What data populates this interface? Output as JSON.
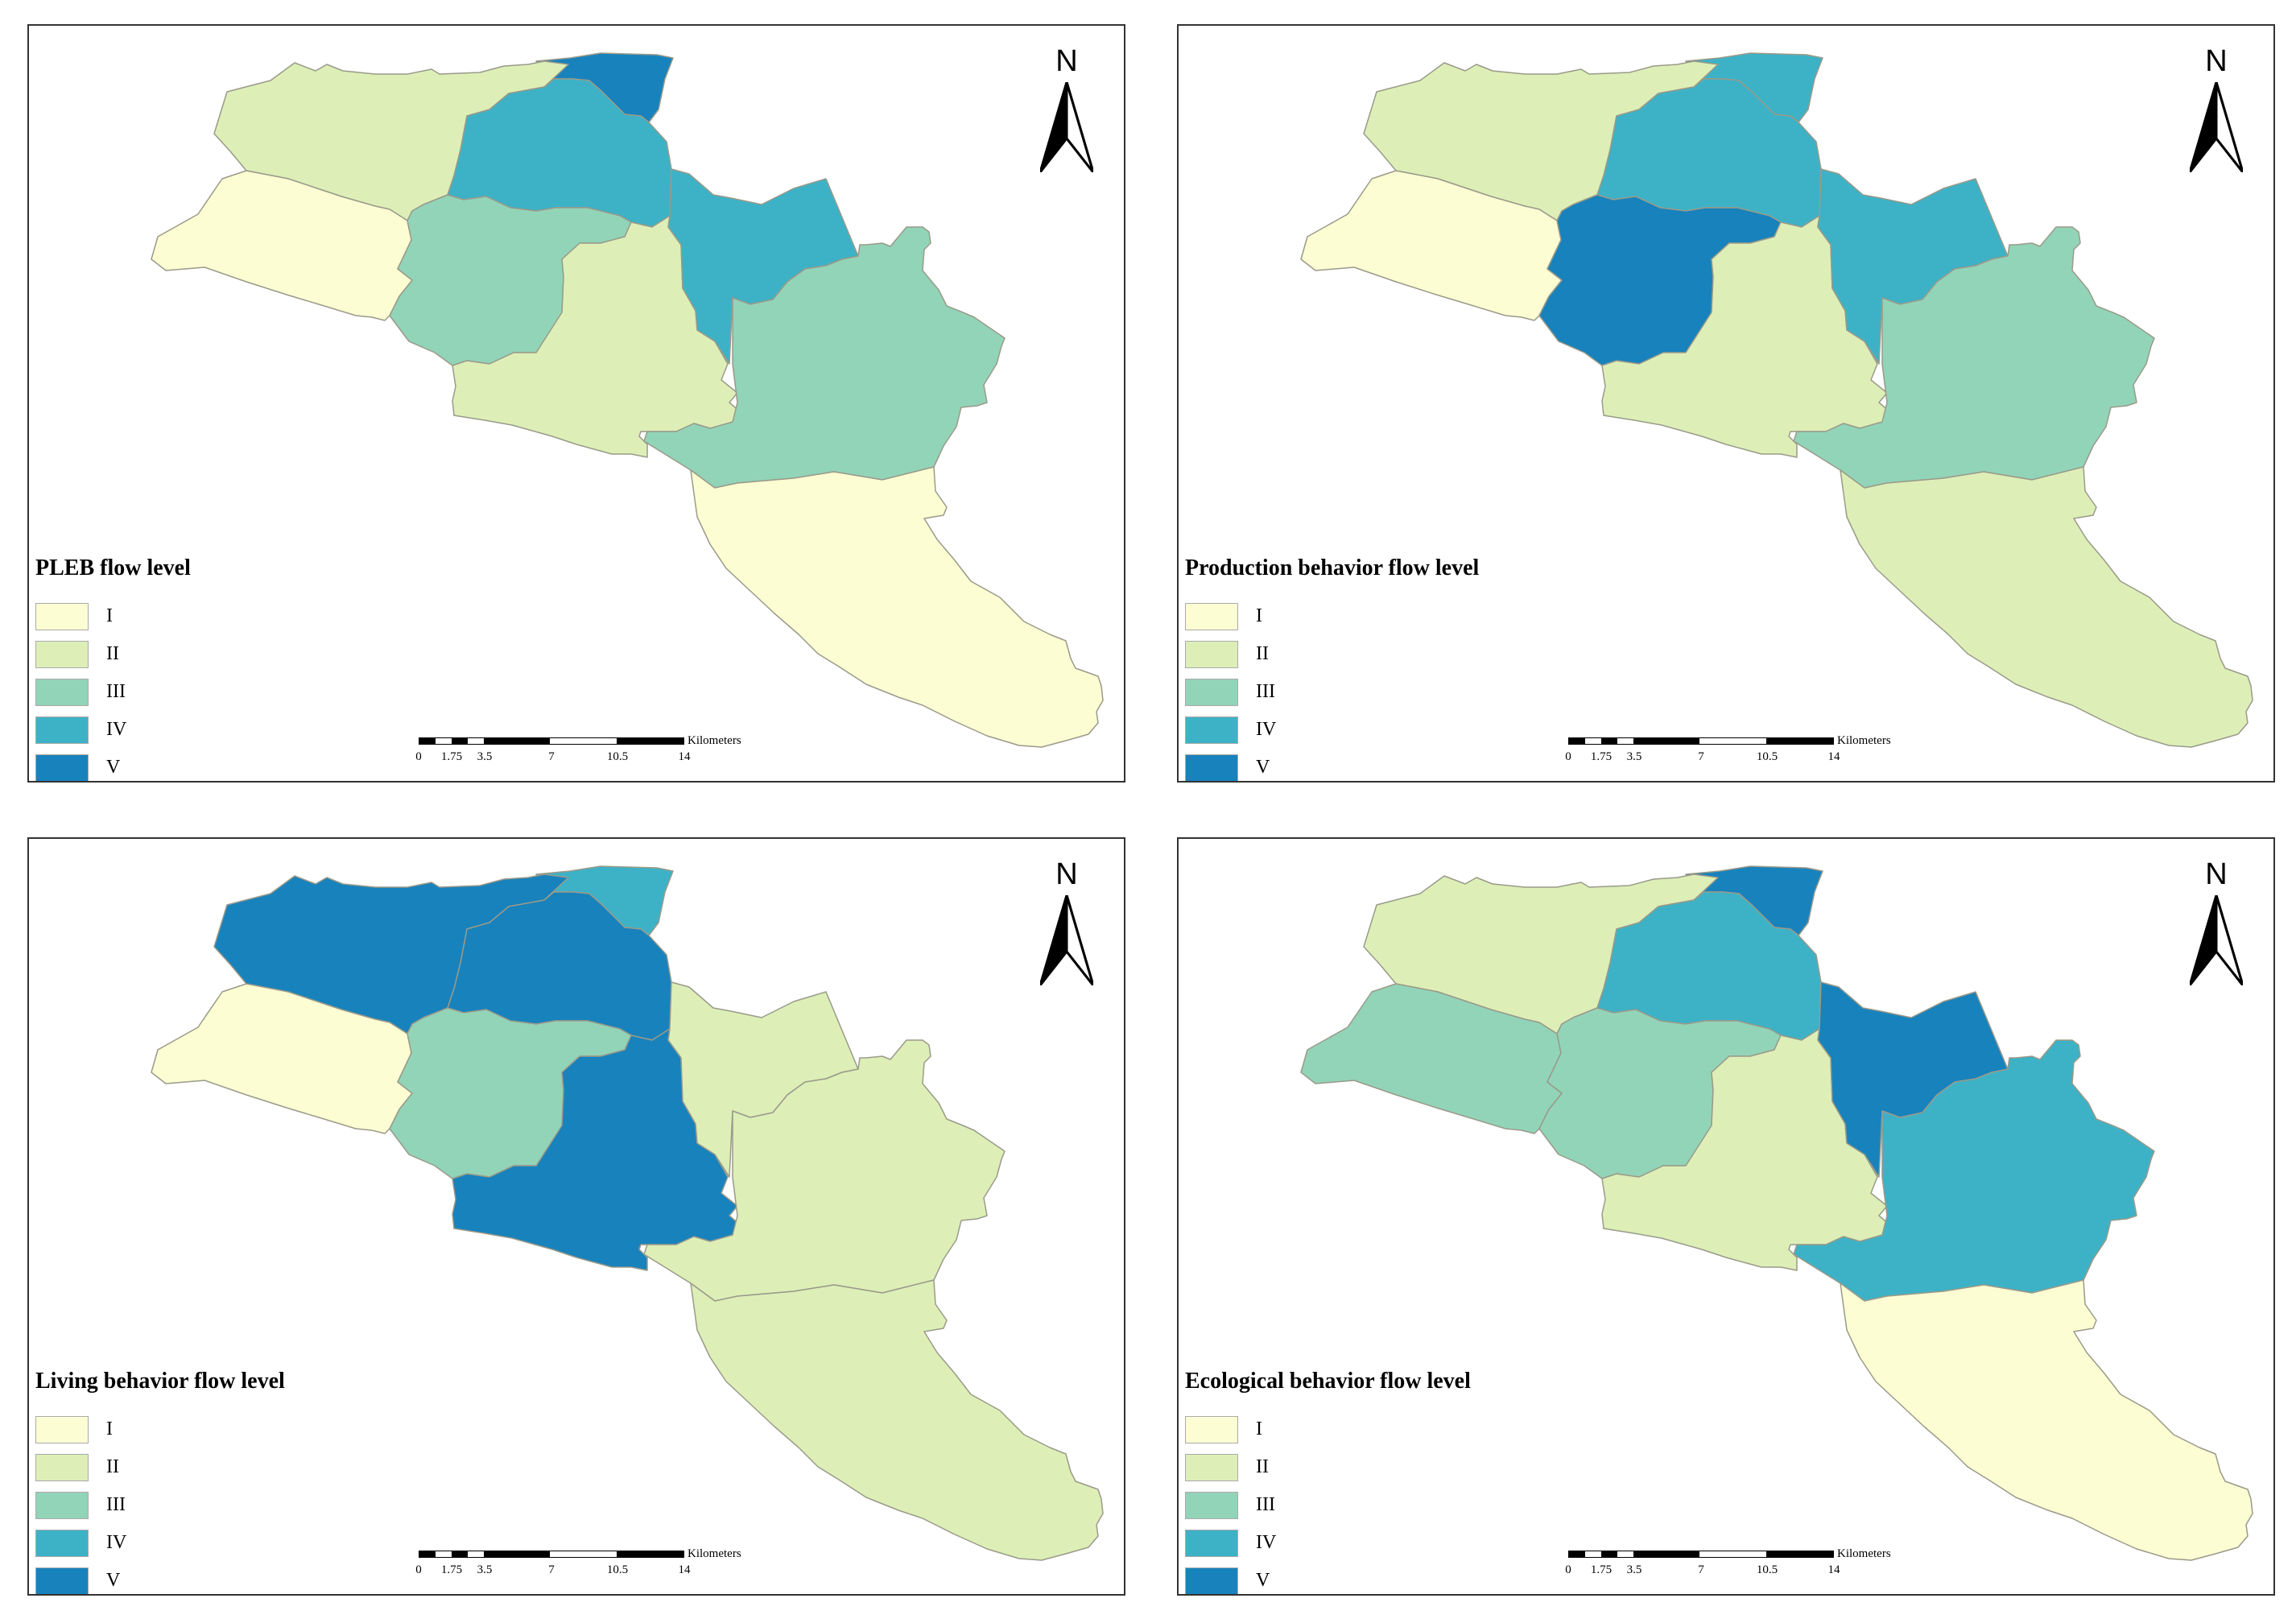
{
  "colors": {
    "I": "#fdfdd3",
    "II": "#ddefb7",
    "III": "#92d4b8",
    "IV": "#3db2c6",
    "V": "#1882bc"
  },
  "legend_levels": [
    "I",
    "II",
    "III",
    "IV",
    "V"
  ],
  "north_label": "N",
  "scale": {
    "ticks": [
      "0",
      "1.75",
      "3.5",
      "7",
      "10.5",
      "14"
    ],
    "unit": "Kilometers"
  },
  "maps": [
    {
      "title": "PLEB flow level",
      "regions": {
        "northeast": "V",
        "north": "II",
        "north_central": "IV",
        "west": "I",
        "central": "III",
        "south_central": "II",
        "east": "IV",
        "southeast": "III",
        "south_tail": "I"
      }
    },
    {
      "title": "Production behavior flow level",
      "regions": {
        "northeast": "IV",
        "north": "II",
        "north_central": "IV",
        "west": "I",
        "central": "V",
        "south_central": "II",
        "east": "IV",
        "southeast": "III",
        "south_tail": "II"
      }
    },
    {
      "title": "Living behavior flow level",
      "regions": {
        "northeast": "IV",
        "north": "V",
        "north_central": "V",
        "west": "I",
        "central": "III",
        "south_central": "V",
        "east": "II",
        "southeast": "II",
        "south_tail": "II"
      }
    },
    {
      "title": "Ecological behavior flow level",
      "regions": {
        "northeast": "V",
        "north": "II",
        "north_central": "IV",
        "west": "III",
        "central": "III",
        "south_central": "II",
        "east": "V",
        "southeast": "IV",
        "south_tail": "I"
      }
    }
  ]
}
